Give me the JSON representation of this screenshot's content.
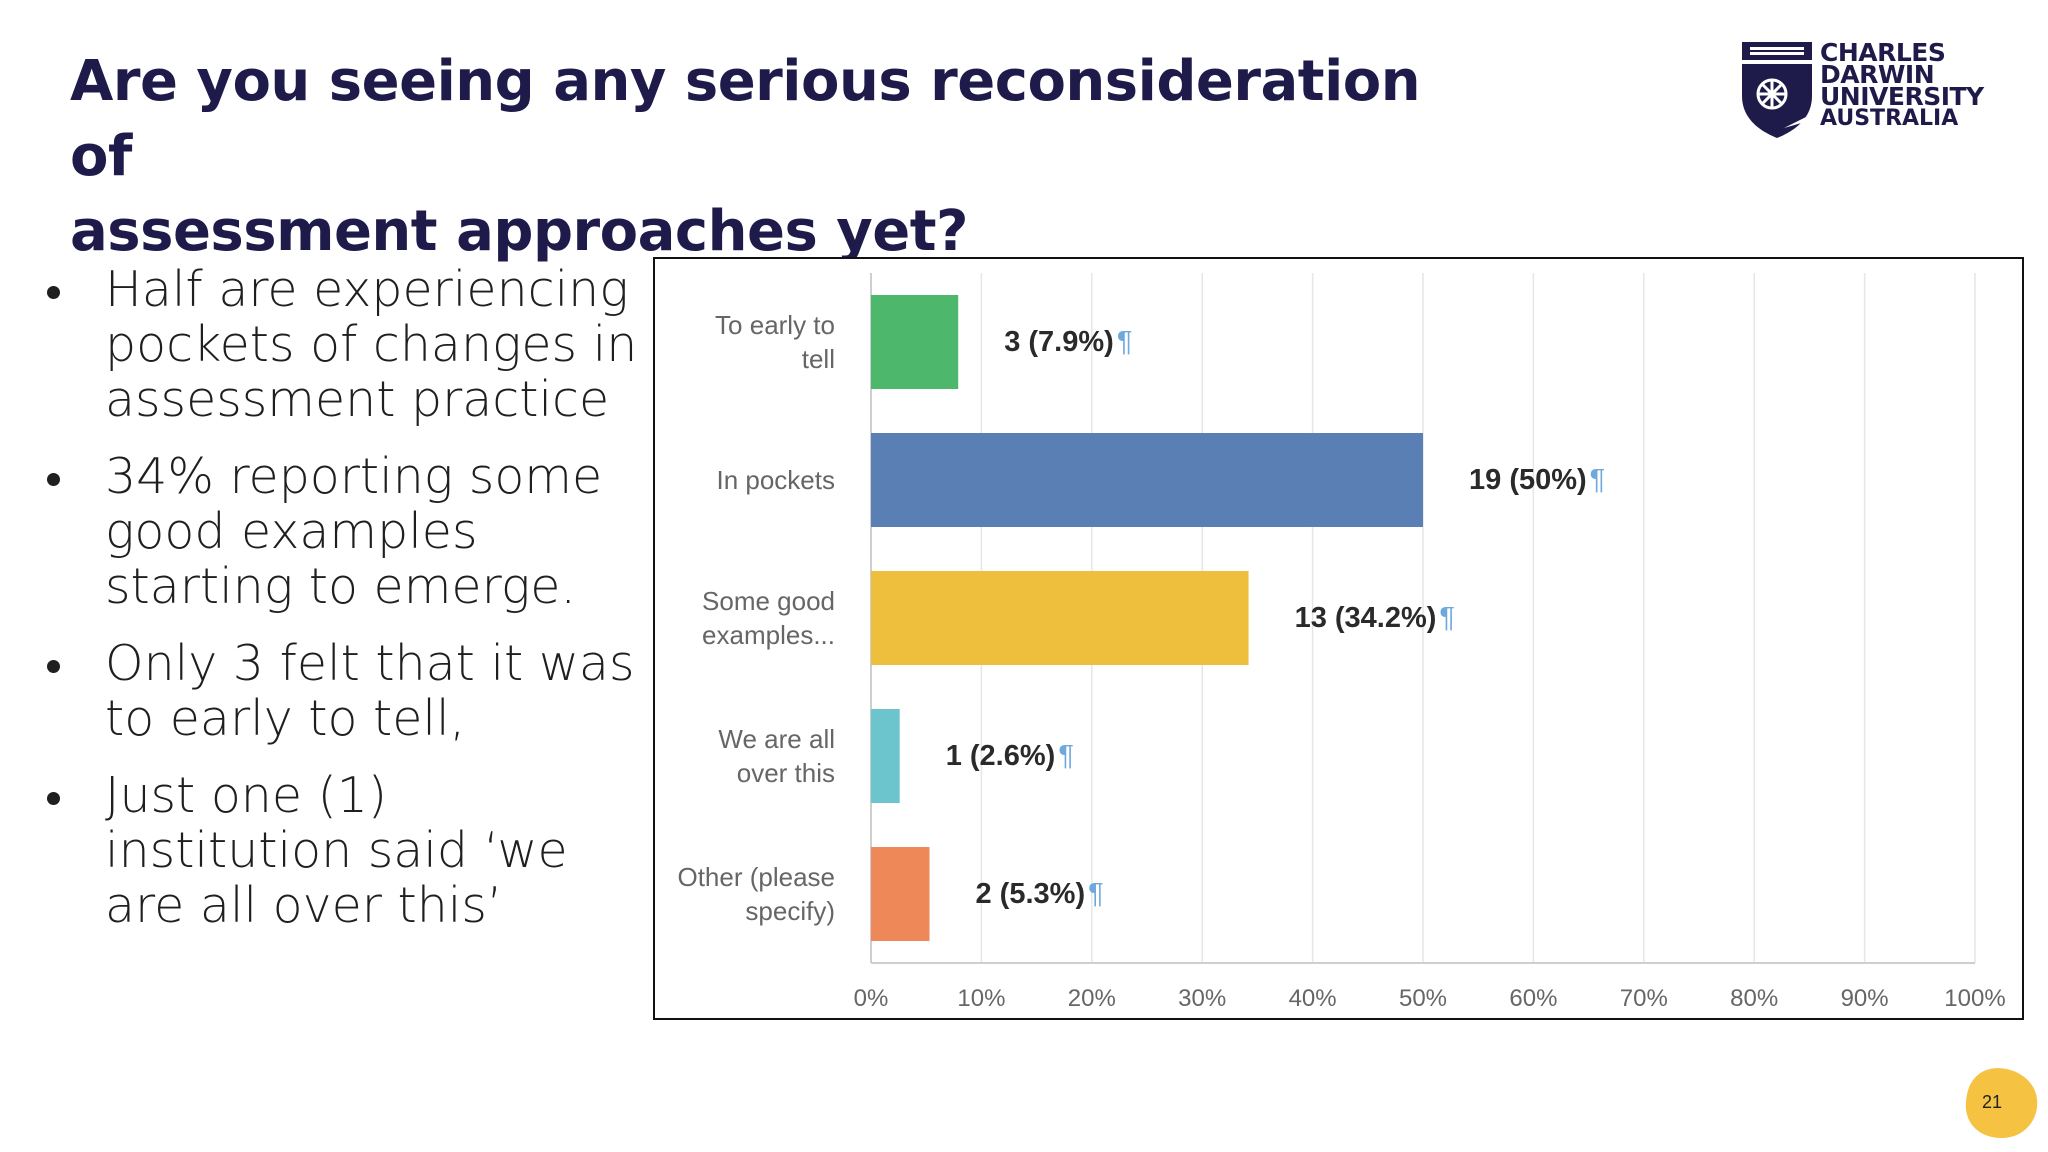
{
  "slide": {
    "title_lines": [
      "Are you seeing any serious reconsideration of",
      "assessment approaches yet?"
    ],
    "bullets": [
      [
        "Half are experiencing",
        "pockets of changes in",
        "assessment practice"
      ],
      [
        "34% reporting some",
        "good examples",
        "starting to emerge."
      ],
      [
        "Only 3 felt that it was",
        "to early to tell,"
      ],
      [
        "Just one (1)",
        "institution said ‘we",
        "are all over this’"
      ]
    ],
    "page_number": "21"
  },
  "logo": {
    "lines": [
      "CHARLES",
      "DARWIN",
      "UNIVERSITY"
    ],
    "subline": "AUSTRALIA",
    "color": "#1e1b4b"
  },
  "colors": {
    "title": "#1e1b4b",
    "badge": "#f5c242",
    "pilcrow": "#6fa8dc"
  },
  "chart_data": {
    "type": "bar",
    "orientation": "horizontal",
    "categories": [
      [
        "To early to",
        "tell"
      ],
      [
        "In pockets"
      ],
      [
        "Some good",
        "examples..."
      ],
      [
        "We are all",
        "over this"
      ],
      [
        "Other (please",
        "specify)"
      ]
    ],
    "values": [
      7.9,
      50,
      34.2,
      2.6,
      5.3
    ],
    "counts": [
      3,
      19,
      13,
      1,
      2
    ],
    "data_labels": [
      "3 (7.9%)",
      "19 (50%)",
      "13 (34.2%)",
      "1 (2.6%)",
      "2 (5.3%)"
    ],
    "bar_colors": [
      "#4db86b",
      "#5a7fb5",
      "#eebf3c",
      "#6cc5cc",
      "#ee8858"
    ],
    "xlim": [
      0,
      100
    ],
    "x_ticks": [
      "0%",
      "10%",
      "20%",
      "30%",
      "40%",
      "50%",
      "60%",
      "70%",
      "80%",
      "90%",
      "100%"
    ],
    "grid": true,
    "title": "",
    "xlabel": "",
    "ylabel": ""
  }
}
